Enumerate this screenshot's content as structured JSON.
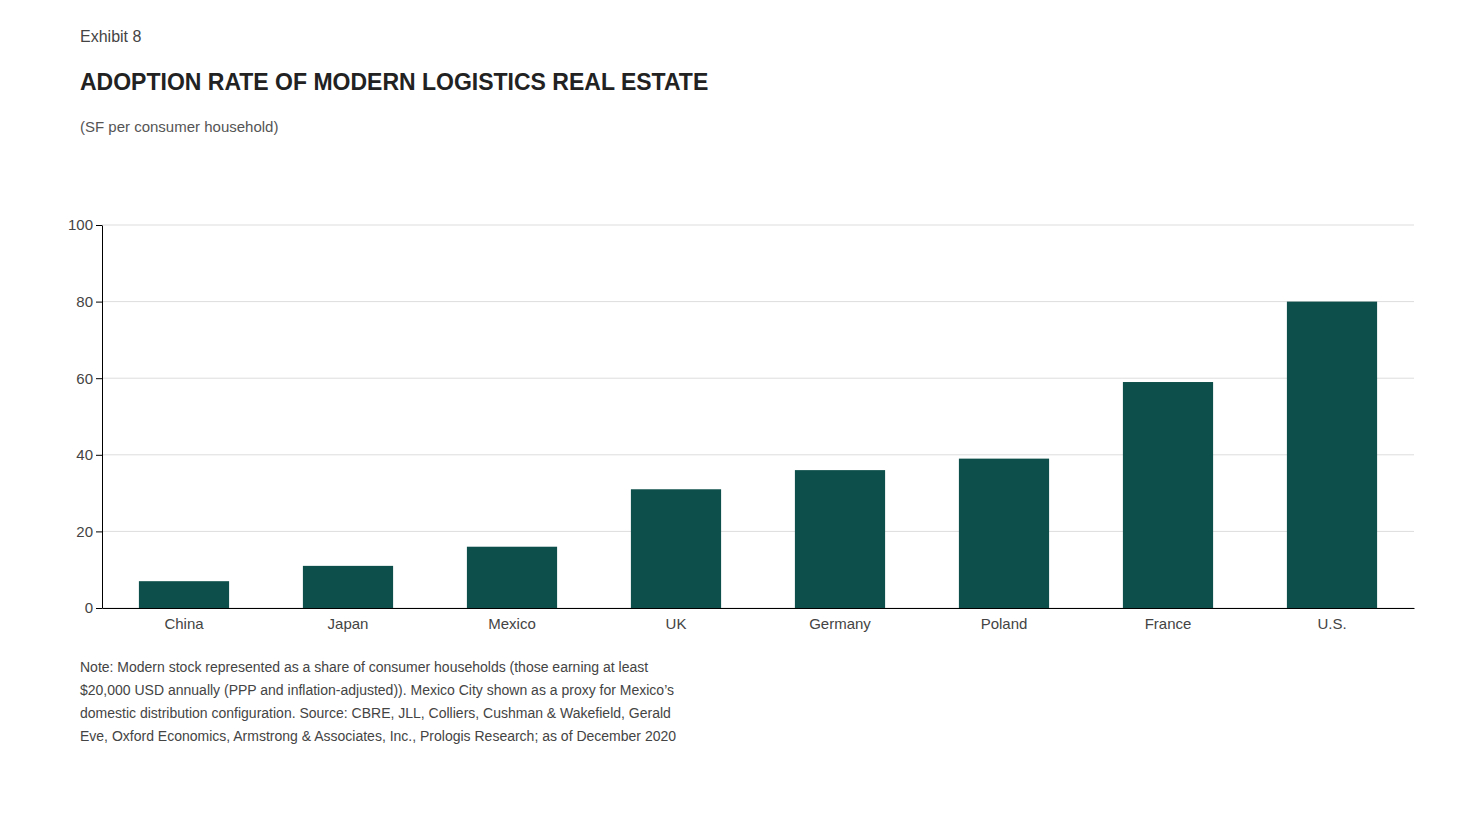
{
  "chart_data": {
    "type": "bar",
    "title": "ADOPTION RATE OF MODERN LOGISTICS REAL ESTATE",
    "subtitle": "(SF per consumer household)",
    "annotations": [
      "Exhibit 8",
      "Note: Modern stock represented as a share of consumer households (those earning at least\n$20,000 USD annually (PPP and inflation-adjusted)). Mexico City shown as a proxy for Mexico’s\ndomestic distribution configuration. Source: CBRE, JLL, Colliers, Cushman & Wakefield, Gerald\nEve, Oxford Economics, Armstrong & Associates, Inc., Prologis Research; as of December 2020"
    ],
    "categories": [
      "China",
      "Japan",
      "Mexico",
      "UK",
      "Germany",
      "Poland",
      "France",
      "U.S."
    ],
    "values": [
      7,
      11,
      16,
      31,
      36,
      39,
      59,
      80
    ],
    "color": "#0d4f4a",
    "ylim": [
      0,
      100
    ],
    "yticks": [
      0,
      20,
      40,
      60,
      80,
      100
    ],
    "grid": true
  }
}
